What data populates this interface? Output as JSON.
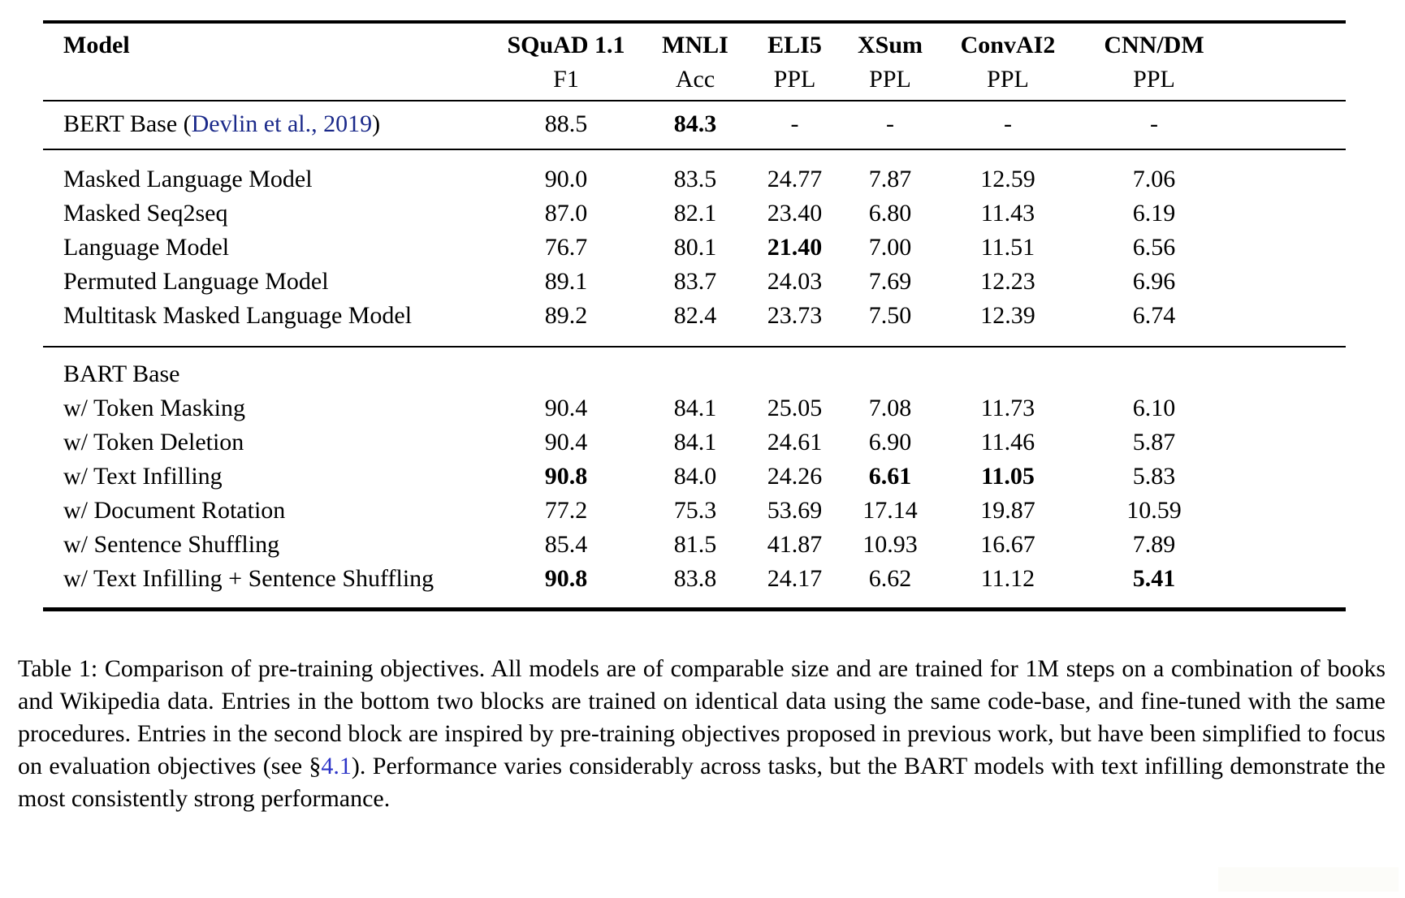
{
  "table": {
    "columns": [
      {
        "key": "model",
        "label": "Model",
        "sublabel": ""
      },
      {
        "key": "squad",
        "label": "SQuAD 1.1",
        "sublabel": "F1"
      },
      {
        "key": "mnli",
        "label": "MNLI",
        "sublabel": "Acc"
      },
      {
        "key": "eli5",
        "label": "ELI5",
        "sublabel": "PPL"
      },
      {
        "key": "xsum",
        "label": "XSum",
        "sublabel": "PPL"
      },
      {
        "key": "convai2",
        "label": "ConvAI2",
        "sublabel": "PPL"
      },
      {
        "key": "cnndm",
        "label": "CNN/DM",
        "sublabel": "PPL"
      }
    ],
    "groups": [
      {
        "rows": [
          {
            "model_parts": [
              {
                "text": "BERT Base (",
                "style": "plain"
              },
              {
                "text": "Devlin et al., 2019",
                "style": "citation-link"
              },
              {
                "text": ")",
                "style": "plain"
              }
            ],
            "values": [
              "88.5",
              "84.3",
              "-",
              "-",
              "-",
              "-"
            ],
            "bold_values": [
              false,
              true,
              false,
              false,
              false,
              false
            ]
          }
        ]
      },
      {
        "rows": [
          {
            "model": "Masked Language Model",
            "values": [
              "90.0",
              "83.5",
              "24.77",
              "7.87",
              "12.59",
              "7.06"
            ]
          },
          {
            "model": "Masked Seq2seq",
            "values": [
              "87.0",
              "82.1",
              "23.40",
              "6.80",
              "11.43",
              "6.19"
            ]
          },
          {
            "model": "Language Model",
            "values": [
              "76.7",
              "80.1",
              "21.40",
              "7.00",
              "11.51",
              "6.56"
            ],
            "bold_values": [
              false,
              false,
              true,
              false,
              false,
              false
            ]
          },
          {
            "model": "Permuted Language Model",
            "values": [
              "89.1",
              "83.7",
              "24.03",
              "7.69",
              "12.23",
              "6.96"
            ]
          },
          {
            "model": "Multitask Masked Language Model",
            "values": [
              "89.2",
              "82.4",
              "23.73",
              "7.50",
              "12.39",
              "6.74"
            ]
          }
        ]
      },
      {
        "rows": [
          {
            "model": "BART Base",
            "values": [
              "",
              "",
              "",
              "",
              "",
              ""
            ]
          },
          {
            "model": "w/ Token Masking",
            "values": [
              "90.4",
              "84.1",
              "25.05",
              "7.08",
              "11.73",
              "6.10"
            ]
          },
          {
            "model": "w/ Token Deletion",
            "values": [
              "90.4",
              "84.1",
              "24.61",
              "6.90",
              "11.46",
              "5.87"
            ]
          },
          {
            "model": "w/ Text Infilling",
            "values": [
              "90.8",
              "84.0",
              "24.26",
              "6.61",
              "11.05",
              "5.83"
            ],
            "bold_values": [
              true,
              false,
              false,
              true,
              true,
              false
            ]
          },
          {
            "model": "w/ Document Rotation",
            "values": [
              "77.2",
              "75.3",
              "53.69",
              "17.14",
              "19.87",
              "10.59"
            ]
          },
          {
            "model": "w/ Sentence Shuffling",
            "values": [
              "85.4",
              "81.5",
              "41.87",
              "10.93",
              "16.67",
              "7.89"
            ]
          },
          {
            "model": "w/ Text Infilling + Sentence Shuffling",
            "values": [
              "90.8",
              "83.8",
              "24.17",
              "6.62",
              "11.12",
              "5.41"
            ],
            "bold_values": [
              true,
              false,
              false,
              false,
              false,
              true
            ]
          }
        ]
      }
    ]
  },
  "caption": {
    "text_before_link": "Table 1:  Comparison of pre-training objectives.  All models are of comparable size and are trained for 1M steps on a combination of books and Wikipedia data.  Entries in the bottom two blocks are trained on identical data using the same code-base, and fine-tuned with the same procedures.  Entries in the second block are inspired by pre-training objectives proposed in previous work, but have been simplified to focus on evaluation objectives (see §",
    "link": "4.1",
    "text_after_link": "). Performance varies considerably across tasks, but the BART models with text infilling demonstrate the most consistently strong performance."
  },
  "colors": {
    "text": "#000000",
    "rule": "#000000",
    "citation_link": "#1b2a8a",
    "section_link": "#2d35c8"
  }
}
